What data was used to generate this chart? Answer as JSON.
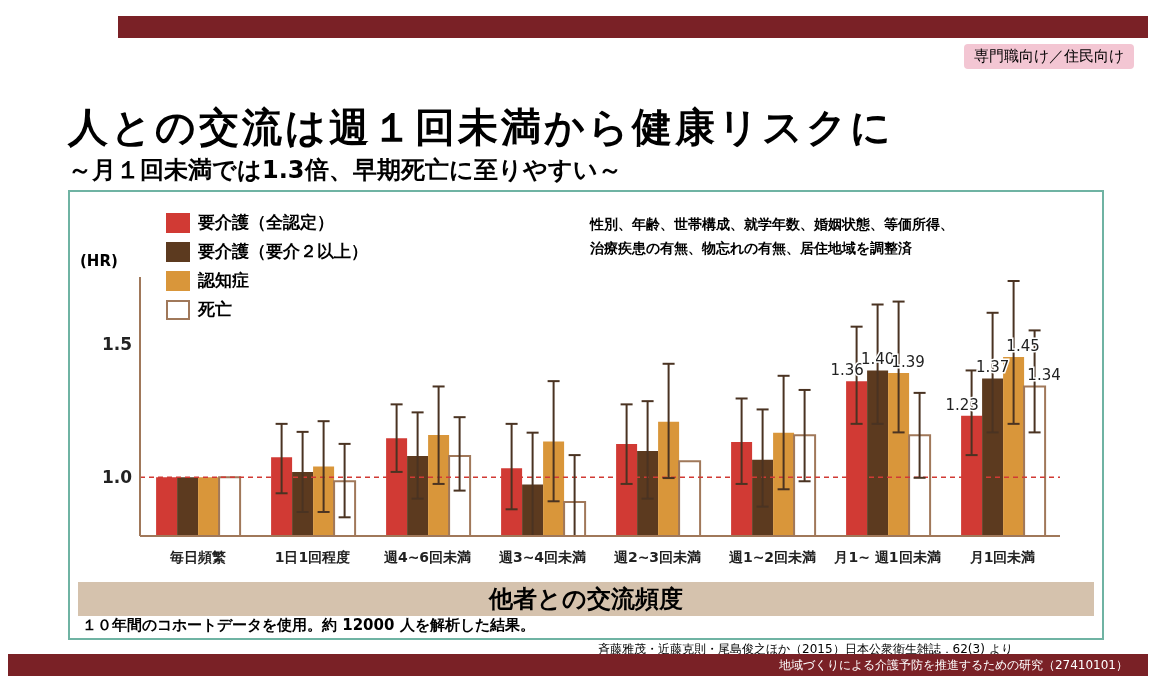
{
  "chart_data": {
    "type": "bar",
    "title": "人との交流は週１回未満から健康リスクに",
    "subtitle": "～月１回未満では1.3倍、早期死亡に至りやすい～",
    "xlabel": "他者との交流頻度",
    "ylabel": "(HR)",
    "categories": [
      "毎日頻繁",
      "1日1回程度",
      "週4~6回未満",
      "週3~4回未満",
      "週2~3回未満",
      "週1~2回未満",
      "月1~ 週1回未満",
      "月1回未満"
    ],
    "series": [
      {
        "name": "要介護（全認定）",
        "color": "#d13a34",
        "values": [
          1.0,
          1.075,
          1.146,
          1.034,
          1.125,
          1.132,
          1.36,
          1.23
        ],
        "errors": [
          null,
          [
            0.94,
            1.2
          ],
          [
            1.02,
            1.273
          ],
          [
            0.88,
            1.2
          ],
          [
            0.975,
            1.273
          ],
          [
            0.975,
            1.295
          ],
          [
            1.2,
            1.564
          ],
          [
            1.083,
            1.4
          ]
        ],
        "value_labels": [
          null,
          null,
          null,
          null,
          null,
          null,
          "1.36",
          "1.23"
        ]
      },
      {
        "name": "要介護（要介２以上）",
        "color": "#5c3a1f",
        "values": [
          1.0,
          1.02,
          1.08,
          0.973,
          1.098,
          1.066,
          1.4,
          1.37
        ],
        "errors": [
          null,
          [
            0.87,
            1.17
          ],
          [
            0.92,
            1.243
          ],
          [
            0.78,
            1.167
          ],
          [
            0.92,
            1.285
          ],
          [
            0.89,
            1.254
          ],
          [
            1.2,
            1.647
          ],
          [
            1.168,
            1.616
          ]
        ],
        "value_labels": [
          null,
          null,
          null,
          null,
          null,
          null,
          "1.40",
          "1.37"
        ]
      },
      {
        "name": "認知症",
        "color": "#d9963a",
        "values": [
          1.0,
          1.04,
          1.158,
          1.134,
          1.208,
          1.167,
          1.39,
          1.45
        ],
        "errors": [
          null,
          [
            0.87,
            1.21
          ],
          [
            0.975,
            1.34
          ],
          [
            0.91,
            1.36
          ],
          [
            0.997,
            1.425
          ],
          [
            0.955,
            1.38
          ],
          [
            1.168,
            1.658
          ],
          [
            1.2,
            1.735
          ]
        ],
        "value_labels": [
          null,
          null,
          null,
          null,
          null,
          null,
          "1.39",
          "1.45"
        ]
      },
      {
        "name": "死亡",
        "color": "#ffffff",
        "values": [
          1.0,
          0.985,
          1.08,
          0.907,
          1.06,
          1.157,
          1.157,
          1.34
        ],
        "errors": [
          null,
          [
            0.85,
            1.125
          ],
          [
            0.95,
            1.225
          ],
          [
            0.78,
            1.083
          ],
          null,
          [
            0.985,
            1.327
          ],
          [
            0.998,
            1.316
          ],
          [
            1.168,
            1.55
          ]
        ],
        "value_labels": [
          null,
          null,
          null,
          null,
          null,
          null,
          null,
          "1.34"
        ]
      }
    ],
    "ylim": [
      0.78,
      1.75
    ],
    "yticks": [
      {
        "value": 1.0,
        "label": "1.0"
      },
      {
        "value": 1.5,
        "label": "1.5"
      }
    ],
    "ref_lines": [
      {
        "axis": "y",
        "value": 1.0,
        "label": null,
        "color": "#d13a34",
        "line_style": "dashed"
      }
    ],
    "grid": false,
    "legend": "top left",
    "annotations": [
      "専門職向け／住民向け",
      "性別、年齢、世帯構成、就学年数、婚姻状態、等価所得、治療疾患の有無、物忘れの有無、居住地域を調整済",
      "１０年間のコホートデータを使用。約 12000 人を解析した結果。",
      "斉藤雅茂・近藤克則・尾島俊之ほか（2015）日本公衆衛生雑誌．62(3) より",
      "地域づくりによる介護予防を推進するための研究（27410101）"
    ]
  }
}
